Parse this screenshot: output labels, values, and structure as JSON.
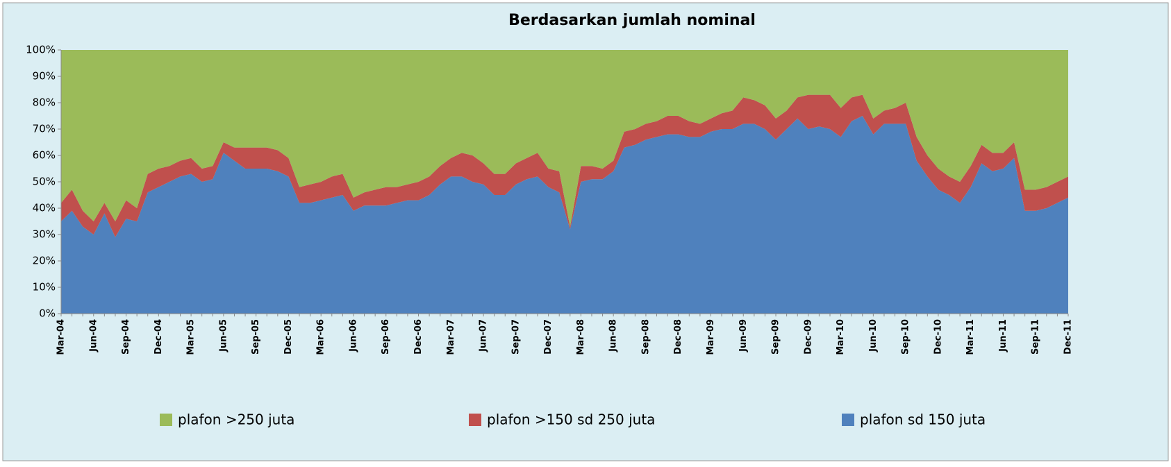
{
  "chart_data": {
    "type": "stacked_area_100",
    "title": "Berdasarkan jumlah nominal",
    "categories": [
      "Mar-04",
      null,
      null,
      "Jun-04",
      null,
      null,
      "Sep-04",
      null,
      null,
      "Dec-04",
      null,
      null,
      "Mar-05",
      null,
      null,
      "Jun-05",
      null,
      null,
      "Sep-05",
      null,
      null,
      "Dec-05",
      null,
      null,
      "Mar-06",
      null,
      null,
      "Jun-06",
      null,
      null,
      "Sep-06",
      null,
      null,
      "Dec-06",
      null,
      null,
      "Mar-07",
      null,
      null,
      "Jun-07",
      null,
      null,
      "Sep-07",
      null,
      null,
      "Dec-07",
      null,
      null,
      "Mar-08",
      null,
      null,
      "Jun-08",
      null,
      null,
      "Sep-08",
      null,
      null,
      "Dec-08",
      null,
      null,
      "Mar-09",
      null,
      null,
      "Jun-09",
      null,
      null,
      "Sep-09",
      null,
      null,
      "Dec-09",
      null,
      null,
      "Mar-10",
      null,
      null,
      "Jun-10",
      null,
      null,
      "Sep-10",
      null,
      null,
      "Dec-10",
      null,
      null,
      "Mar-11",
      null,
      null,
      "Jun-11",
      null,
      null,
      "Sep-11",
      null,
      null,
      "Dec-11"
    ],
    "series": [
      {
        "name": "plafon >250 juta",
        "color": "#9bbb59",
        "values": [
          58,
          53,
          61,
          65,
          58,
          65,
          57,
          60,
          47,
          45,
          44,
          42,
          41,
          45,
          44,
          35,
          37,
          37,
          37,
          37,
          38,
          41,
          52,
          51,
          50,
          48,
          47,
          56,
          54,
          53,
          52,
          52,
          51,
          50,
          48,
          44,
          41,
          39,
          40,
          43,
          47,
          47,
          43,
          41,
          39,
          45,
          46,
          67,
          44,
          44,
          45,
          42,
          31,
          30,
          28,
          27,
          25,
          25,
          27,
          28,
          26,
          24,
          23,
          18,
          19,
          21,
          26,
          23,
          18,
          17,
          17,
          17,
          22,
          18,
          17,
          26,
          23,
          22,
          20,
          33,
          40,
          45,
          48,
          50,
          44,
          36,
          39,
          39,
          35,
          53,
          53,
          52,
          50,
          48
        ]
      },
      {
        "name": "plafon >150 sd 250 juta",
        "color": "#c0504d",
        "values": [
          7,
          8,
          6,
          5,
          4,
          6,
          7,
          5,
          7,
          7,
          6,
          6,
          6,
          5,
          5,
          4,
          5,
          8,
          8,
          8,
          8,
          7,
          6,
          7,
          7,
          8,
          8,
          5,
          5,
          6,
          7,
          6,
          6,
          7,
          7,
          7,
          7,
          9,
          10,
          8,
          8,
          8,
          8,
          8,
          9,
          7,
          8,
          1,
          6,
          5,
          4,
          4,
          6,
          6,
          6,
          6,
          7,
          7,
          6,
          5,
          5,
          6,
          7,
          10,
          9,
          9,
          8,
          7,
          8,
          13,
          12,
          13,
          11,
          9,
          8,
          6,
          5,
          6,
          8,
          9,
          8,
          8,
          7,
          8,
          8,
          7,
          7,
          6,
          6,
          8,
          8,
          8,
          8,
          8
        ]
      },
      {
        "name": "plafon sd 150 juta",
        "color": "#4f81bd",
        "values": [
          35,
          39,
          33,
          30,
          38,
          29,
          36,
          35,
          46,
          48,
          50,
          52,
          53,
          50,
          51,
          61,
          58,
          55,
          55,
          55,
          54,
          52,
          42,
          42,
          43,
          44,
          45,
          39,
          41,
          41,
          41,
          42,
          43,
          43,
          45,
          49,
          52,
          52,
          50,
          49,
          45,
          45,
          49,
          51,
          52,
          48,
          46,
          32,
          50,
          51,
          51,
          54,
          63,
          64,
          66,
          67,
          68,
          68,
          67,
          67,
          69,
          70,
          70,
          72,
          72,
          70,
          66,
          70,
          74,
          70,
          71,
          70,
          67,
          73,
          75,
          68,
          72,
          72,
          72,
          58,
          52,
          47,
          45,
          42,
          48,
          57,
          54,
          55,
          59,
          39,
          39,
          40,
          42,
          44
        ]
      }
    ],
    "ylim": [
      0,
      100
    ],
    "yticks": [
      {
        "value": 0,
        "label": "0%"
      },
      {
        "value": 10,
        "label": "10%"
      },
      {
        "value": 20,
        "label": "20%"
      },
      {
        "value": 30,
        "label": "30%"
      },
      {
        "value": 40,
        "label": "40%"
      },
      {
        "value": 50,
        "label": "50%"
      },
      {
        "value": 60,
        "label": "60%"
      },
      {
        "value": 70,
        "label": "70%"
      },
      {
        "value": 80,
        "label": "80%"
      },
      {
        "value": 90,
        "label": "90%"
      },
      {
        "value": 100,
        "label": "100%"
      }
    ],
    "legend": "bottom"
  }
}
